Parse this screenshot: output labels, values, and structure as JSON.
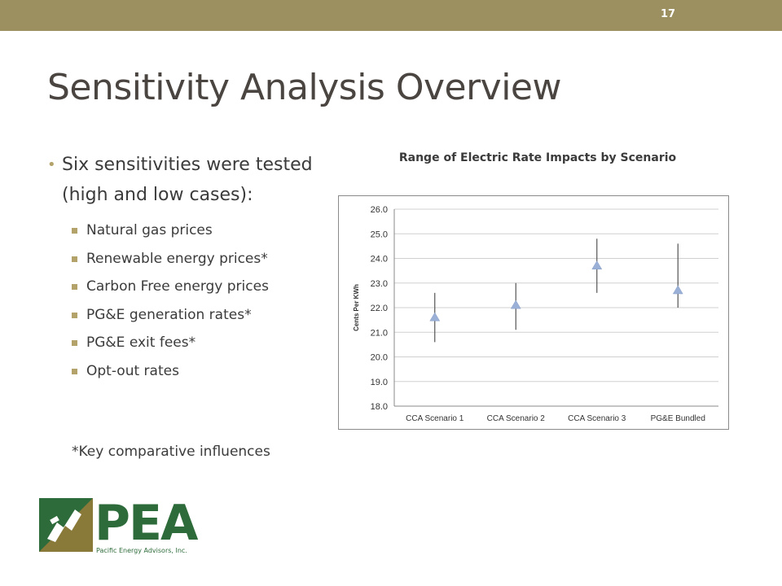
{
  "slide": {
    "number": "17",
    "title": "Sensitivity Analysis Overview"
  },
  "bullets": {
    "main": "Six sensitivities were tested (high and low cases):",
    "items": [
      "Natural gas prices",
      "Renewable energy prices*",
      "Carbon Free energy prices",
      "PG&E generation rates*",
      "PG&E exit fees*",
      "Opt-out rates"
    ],
    "footnote": "*Key comparative influences"
  },
  "logo": {
    "name": "PEA",
    "subtitle": "Pacific Energy Advisors, Inc."
  },
  "colors": {
    "topbar": "#9c9060",
    "accent": "#b3a36b",
    "marker": "#9bb0d6",
    "logo_green": "#2e6b3a"
  },
  "chart_data": {
    "type": "scatter",
    "title": "Range of Electric Rate Impacts by Scenario",
    "xlabel": "",
    "ylabel": "Cents Per KWh",
    "ylim": [
      18.0,
      26.0
    ],
    "yticks": [
      "18.0",
      "19.0",
      "20.0",
      "21.0",
      "22.0",
      "23.0",
      "24.0",
      "25.0",
      "26.0"
    ],
    "grid": true,
    "categories": [
      "CCA Scenario 1",
      "CCA Scenario 2",
      "CCA Scenario 3",
      "PG&E Bundled"
    ],
    "values": [
      21.6,
      22.1,
      23.7,
      22.7
    ],
    "low": [
      20.6,
      21.1,
      22.6,
      22.0
    ],
    "high": [
      22.6,
      23.0,
      24.8,
      24.6
    ]
  }
}
